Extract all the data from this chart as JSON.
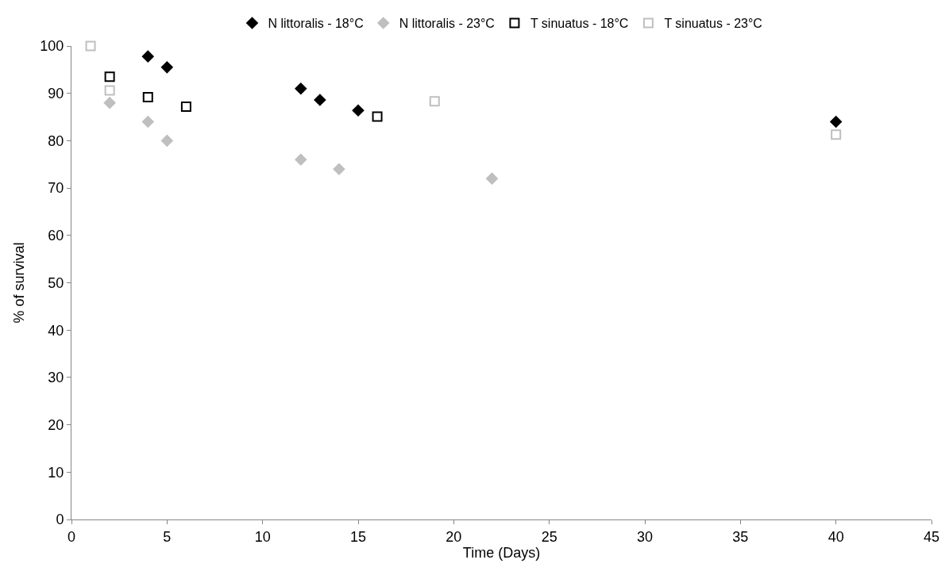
{
  "chart_data": {
    "type": "scatter",
    "xlabel": "Time (Days)",
    "ylabel": "% of survival",
    "xlim": [
      0,
      45
    ],
    "xticks": [
      0,
      5,
      10,
      15,
      20,
      25,
      30,
      35,
      40,
      45
    ],
    "ylim": [
      0,
      100
    ],
    "yticks": [
      0,
      10,
      20,
      30,
      40,
      50,
      60,
      70,
      80,
      90,
      100
    ],
    "legend": "top",
    "series": [
      {
        "name": "N littoralis - 18°C",
        "color": "#000000",
        "marker": "diamond",
        "x": [
          4,
          5,
          12,
          13,
          15,
          40
        ],
        "values": [
          97.8,
          95.5,
          91,
          88.6,
          86.4,
          84
        ]
      },
      {
        "name": "N littoralis - 23°C",
        "color": "#bfbfbf",
        "marker": "diamond",
        "x": [
          2,
          4,
          5,
          12,
          14,
          22
        ],
        "values": [
          88,
          84,
          80,
          76,
          74,
          72
        ]
      },
      {
        "name": "T sinuatus - 18°C",
        "color": "#000000",
        "marker": "square-open",
        "x": [
          2,
          4,
          6,
          16
        ],
        "values": [
          93.5,
          89.2,
          87.2,
          85.1
        ]
      },
      {
        "name": "T sinuatus - 23°C",
        "color": "#bfbfbf",
        "marker": "square-open",
        "x": [
          1,
          2,
          19,
          40
        ],
        "values": [
          100,
          90.6,
          88.3,
          81.3
        ]
      }
    ]
  }
}
